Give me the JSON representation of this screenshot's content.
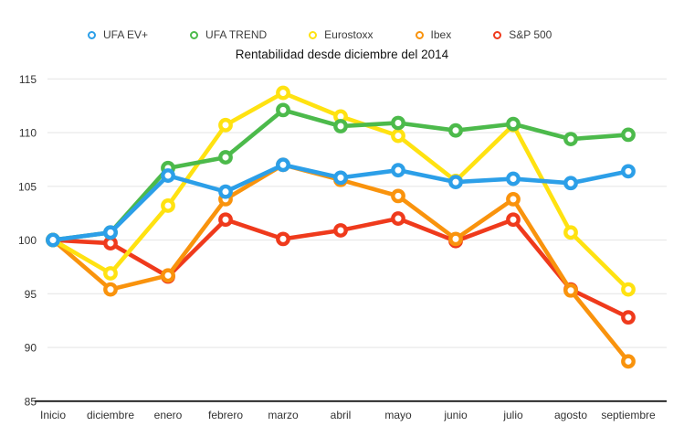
{
  "chart_data": {
    "type": "line",
    "title": "Rentabilidad desde diciembre del 2014",
    "categories": [
      "Inicio",
      "diciembre",
      "enero",
      "febrero",
      "marzo",
      "abril",
      "mayo",
      "junio",
      "julio",
      "agosto",
      "septiembre"
    ],
    "series": [
      {
        "name": "UFA EV+",
        "color": "#2C9FE8",
        "values": [
          100,
          100.7,
          106.0,
          104.5,
          107.0,
          105.8,
          106.5,
          105.4,
          105.7,
          105.3,
          106.4
        ]
      },
      {
        "name": "UFA TREND",
        "color": "#4CBA4B",
        "values": [
          100,
          100.7,
          106.7,
          107.7,
          112.1,
          110.6,
          110.9,
          110.2,
          110.8,
          109.4,
          109.8
        ]
      },
      {
        "name": "Eurostoxx",
        "color": "#FFE211",
        "values": [
          100,
          96.9,
          103.2,
          110.7,
          113.7,
          111.5,
          109.7,
          105.5,
          110.7,
          100.7,
          95.4
        ]
      },
      {
        "name": "Ibex",
        "color": "#F9930D",
        "values": [
          100,
          95.4,
          96.7,
          103.8,
          107.0,
          105.6,
          104.1,
          100.1,
          103.8,
          95.3,
          88.7
        ]
      },
      {
        "name": "S&P 500",
        "color": "#EF3A1C",
        "values": [
          100,
          99.7,
          96.6,
          101.9,
          100.1,
          100.9,
          102.0,
          99.9,
          101.9,
          95.4,
          92.8
        ]
      }
    ],
    "ylim": [
      85,
      115
    ],
    "yticks": [
      115,
      110,
      105,
      100,
      95,
      90,
      85
    ],
    "grid": true,
    "legend_position": "top"
  },
  "colors": {
    "background": "#ffffff",
    "gridline": "#e7e7e7",
    "axis_line": "#1a1a1a",
    "text": "#333333"
  }
}
